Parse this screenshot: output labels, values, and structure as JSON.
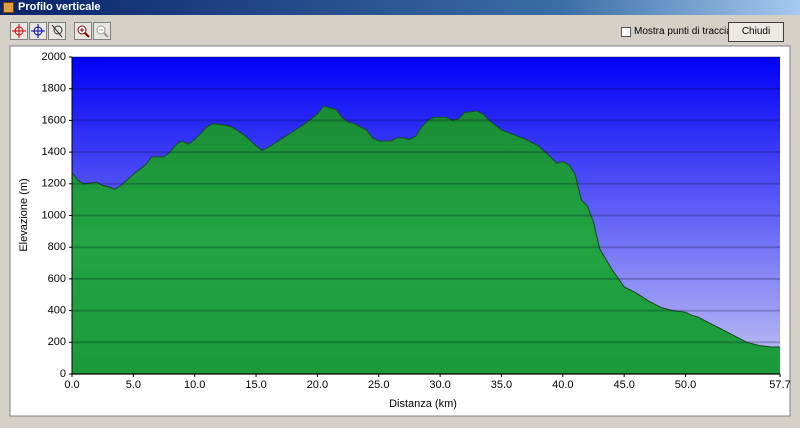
{
  "window": {
    "title": "Profilo verticale",
    "checkbox_label": "Mostra punti di traccia",
    "button_label": "Chiudi"
  },
  "chart_data": {
    "type": "area",
    "xlabel": "Distanza    (km)",
    "ylabel": "Elevazione (m)",
    "x": [
      0,
      0.5,
      1,
      2,
      2.5,
      3,
      3.5,
      4,
      5,
      6,
      6.5,
      7.5,
      8,
      8.5,
      9,
      9.5,
      10,
      10.5,
      11,
      11.5,
      12.5,
      13,
      14,
      15,
      15.5,
      16,
      17,
      18,
      19,
      20,
      20.5,
      21,
      21.5,
      22,
      22.5,
      23,
      23.5,
      24,
      24.5,
      25,
      26,
      26.5,
      27,
      27.5,
      28,
      28.5,
      29,
      29.5,
      30.5,
      31,
      31.5,
      32,
      33,
      33.5,
      34,
      35,
      36,
      37,
      38,
      39,
      39.5,
      40,
      40.5,
      41,
      41.5,
      42,
      42.5,
      43,
      44,
      45,
      46,
      47,
      48,
      49,
      50,
      50.5,
      51,
      52,
      53,
      54,
      55,
      56,
      57,
      57.7
    ],
    "values": [
      1270,
      1220,
      1200,
      1210,
      1190,
      1180,
      1165,
      1190,
      1260,
      1320,
      1370,
      1370,
      1400,
      1450,
      1470,
      1450,
      1480,
      1520,
      1560,
      1580,
      1570,
      1560,
      1510,
      1440,
      1410,
      1430,
      1480,
      1530,
      1580,
      1640,
      1690,
      1680,
      1670,
      1620,
      1590,
      1580,
      1560,
      1540,
      1490,
      1470,
      1470,
      1490,
      1490,
      1480,
      1500,
      1560,
      1600,
      1620,
      1620,
      1600,
      1610,
      1650,
      1660,
      1640,
      1600,
      1540,
      1510,
      1480,
      1440,
      1370,
      1330,
      1340,
      1320,
      1260,
      1100,
      1060,
      960,
      790,
      660,
      550,
      510,
      460,
      420,
      400,
      390,
      370,
      360,
      320,
      280,
      240,
      200,
      180,
      170,
      170
    ],
    "color": "#1f9b3c",
    "xlim": [
      0,
      57.7
    ],
    "xticks": [
      {
        "value": 0,
        "label": "0.0"
      },
      {
        "value": 5,
        "label": "5.0"
      },
      {
        "value": 10,
        "label": "10.0"
      },
      {
        "value": 15,
        "label": "15.0"
      },
      {
        "value": 20,
        "label": "20.0"
      },
      {
        "value": 25,
        "label": "25.0"
      },
      {
        "value": 30,
        "label": "30.0"
      },
      {
        "value": 35,
        "label": "35.0"
      },
      {
        "value": 40,
        "label": "40.0"
      },
      {
        "value": 45,
        "label": "45.0"
      },
      {
        "value": 50,
        "label": "50.0"
      },
      57.7
    ],
    "ylim": [
      0,
      2000
    ],
    "yticks": [
      0,
      200,
      400,
      600,
      800,
      1000,
      1200,
      1400,
      1600,
      1800,
      2000
    ],
    "grid": true
  }
}
